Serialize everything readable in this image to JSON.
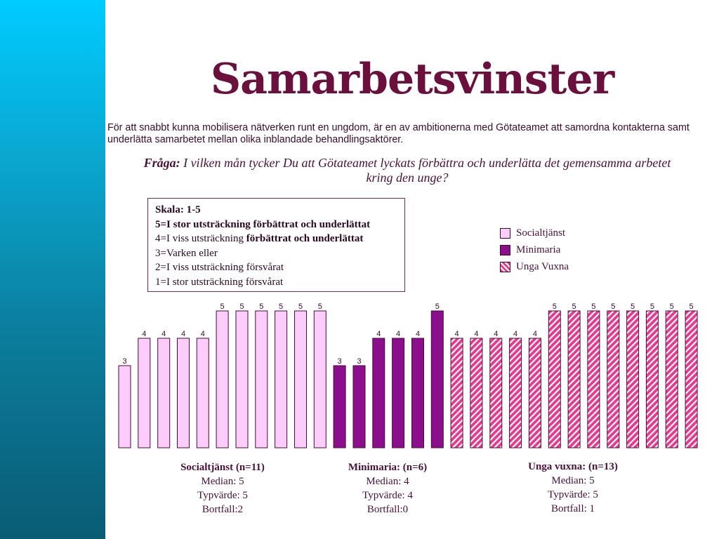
{
  "slide": {
    "title": "Samarbetsvinster",
    "intro": "För att snabbt kunna mobilisera nätverken runt en ungdom, är en av ambitionerna med Götateamet att samordna kontakterna samt underlätta samarbetet mellan olika inblandade behandlingsaktörer.",
    "question_label": "Fråga:",
    "question_text": "I vilken mån tycker Du att Götateamet lyckats förbättra och underlätta det gemensamma arbetet kring den unge?"
  },
  "scale": {
    "heading": "Skala: 1-5",
    "line5": "5=I stor utsträckning förbättrat och underlättat",
    "line4_plain": "4=I viss utsträckning ",
    "line4_bold": "förbättrat och underlättat",
    "line3": "3=Varken eller",
    "line2": "2=I viss utsträckning försvårat",
    "line1": "1=I stor utsträckning försvårat"
  },
  "legend": [
    "Socialtjänst",
    "Minimaria",
    "Unga Vuxna"
  ],
  "colors": {
    "socialtjanst": "#fcccfa",
    "minimaria": "#8b0f8c",
    "unga_vuxna": "#e8378e",
    "bar_border": "#4a0a3a",
    "title": "#6b0f3c"
  },
  "chart_data": {
    "type": "bar",
    "ylim": [
      0,
      5
    ],
    "series": [
      {
        "name": "Socialtjänst",
        "pattern": "solid-light",
        "values": [
          3,
          4,
          4,
          4,
          4,
          5,
          5,
          5,
          5,
          5,
          5
        ]
      },
      {
        "name": "Minimaria",
        "pattern": "solid-dark",
        "values": [
          3,
          3,
          4,
          4,
          4,
          5
        ]
      },
      {
        "name": "Unga Vuxna",
        "pattern": "hatched",
        "values": [
          4,
          4,
          4,
          4,
          4,
          5,
          5,
          5,
          5,
          5,
          5,
          5,
          5
        ]
      }
    ]
  },
  "stats": [
    {
      "head": "Socialtjänst (n=11)",
      "median": "Median: 5",
      "typ": "Typvärde: 5",
      "bortfall": "Bortfall:2"
    },
    {
      "head": "Minimaria: (n=6)",
      "median": "Median: 4",
      "typ": "Typvärde: 4",
      "bortfall": "Bortfall:0"
    },
    {
      "head": "Unga vuxna: (n=13)",
      "median": "Median: 5",
      "typ": "Typvärde: 5",
      "bortfall": "Bortfall: 1"
    }
  ]
}
